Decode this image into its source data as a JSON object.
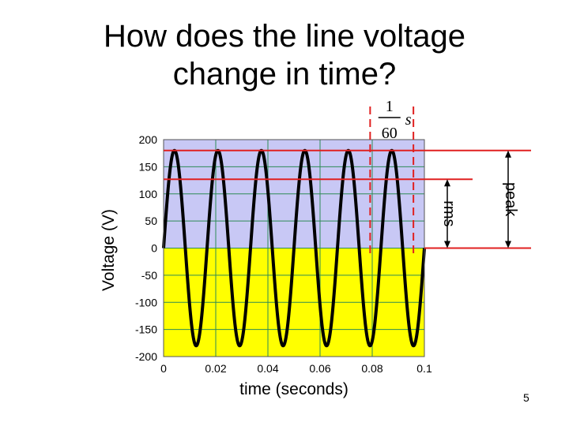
{
  "slide": {
    "title_line1": "How does the line voltage",
    "title_line2": "change in time?",
    "page_number": "5"
  },
  "chart_data": {
    "type": "line",
    "xlabel": "time (seconds)",
    "ylabel": "Voltage (V)",
    "xlim": [
      0,
      0.1
    ],
    "ylim": [
      -200,
      200
    ],
    "x_ticks": [
      "0",
      "0.02",
      "0.04",
      "0.06",
      "0.08",
      "0.1"
    ],
    "y_ticks": [
      "200",
      "150",
      "100",
      "50",
      "0",
      "-50",
      "-100",
      "-150",
      "-200"
    ],
    "grid": true,
    "series": [
      {
        "function": "sine",
        "amplitude": 180,
        "frequency_hz": 60,
        "x_start": 0,
        "x_end": 0.1,
        "color": "#000000"
      }
    ],
    "regions": [
      {
        "from": 0,
        "to": 200,
        "color": "#c8c8f5"
      },
      {
        "from": -200,
        "to": 0,
        "color": "#ffff00"
      }
    ],
    "annotations": {
      "period_numerator": "1",
      "period_denominator": "60",
      "period_unit": "s",
      "period_start": 0.0792,
      "period_end": 0.0958,
      "peak_label": "peak",
      "peak_value": 180,
      "rms_label": "rms",
      "rms_value": 127
    },
    "colors": {
      "annotation": "#e02020",
      "grid": "#2e8b57",
      "curve": "#000000"
    }
  }
}
